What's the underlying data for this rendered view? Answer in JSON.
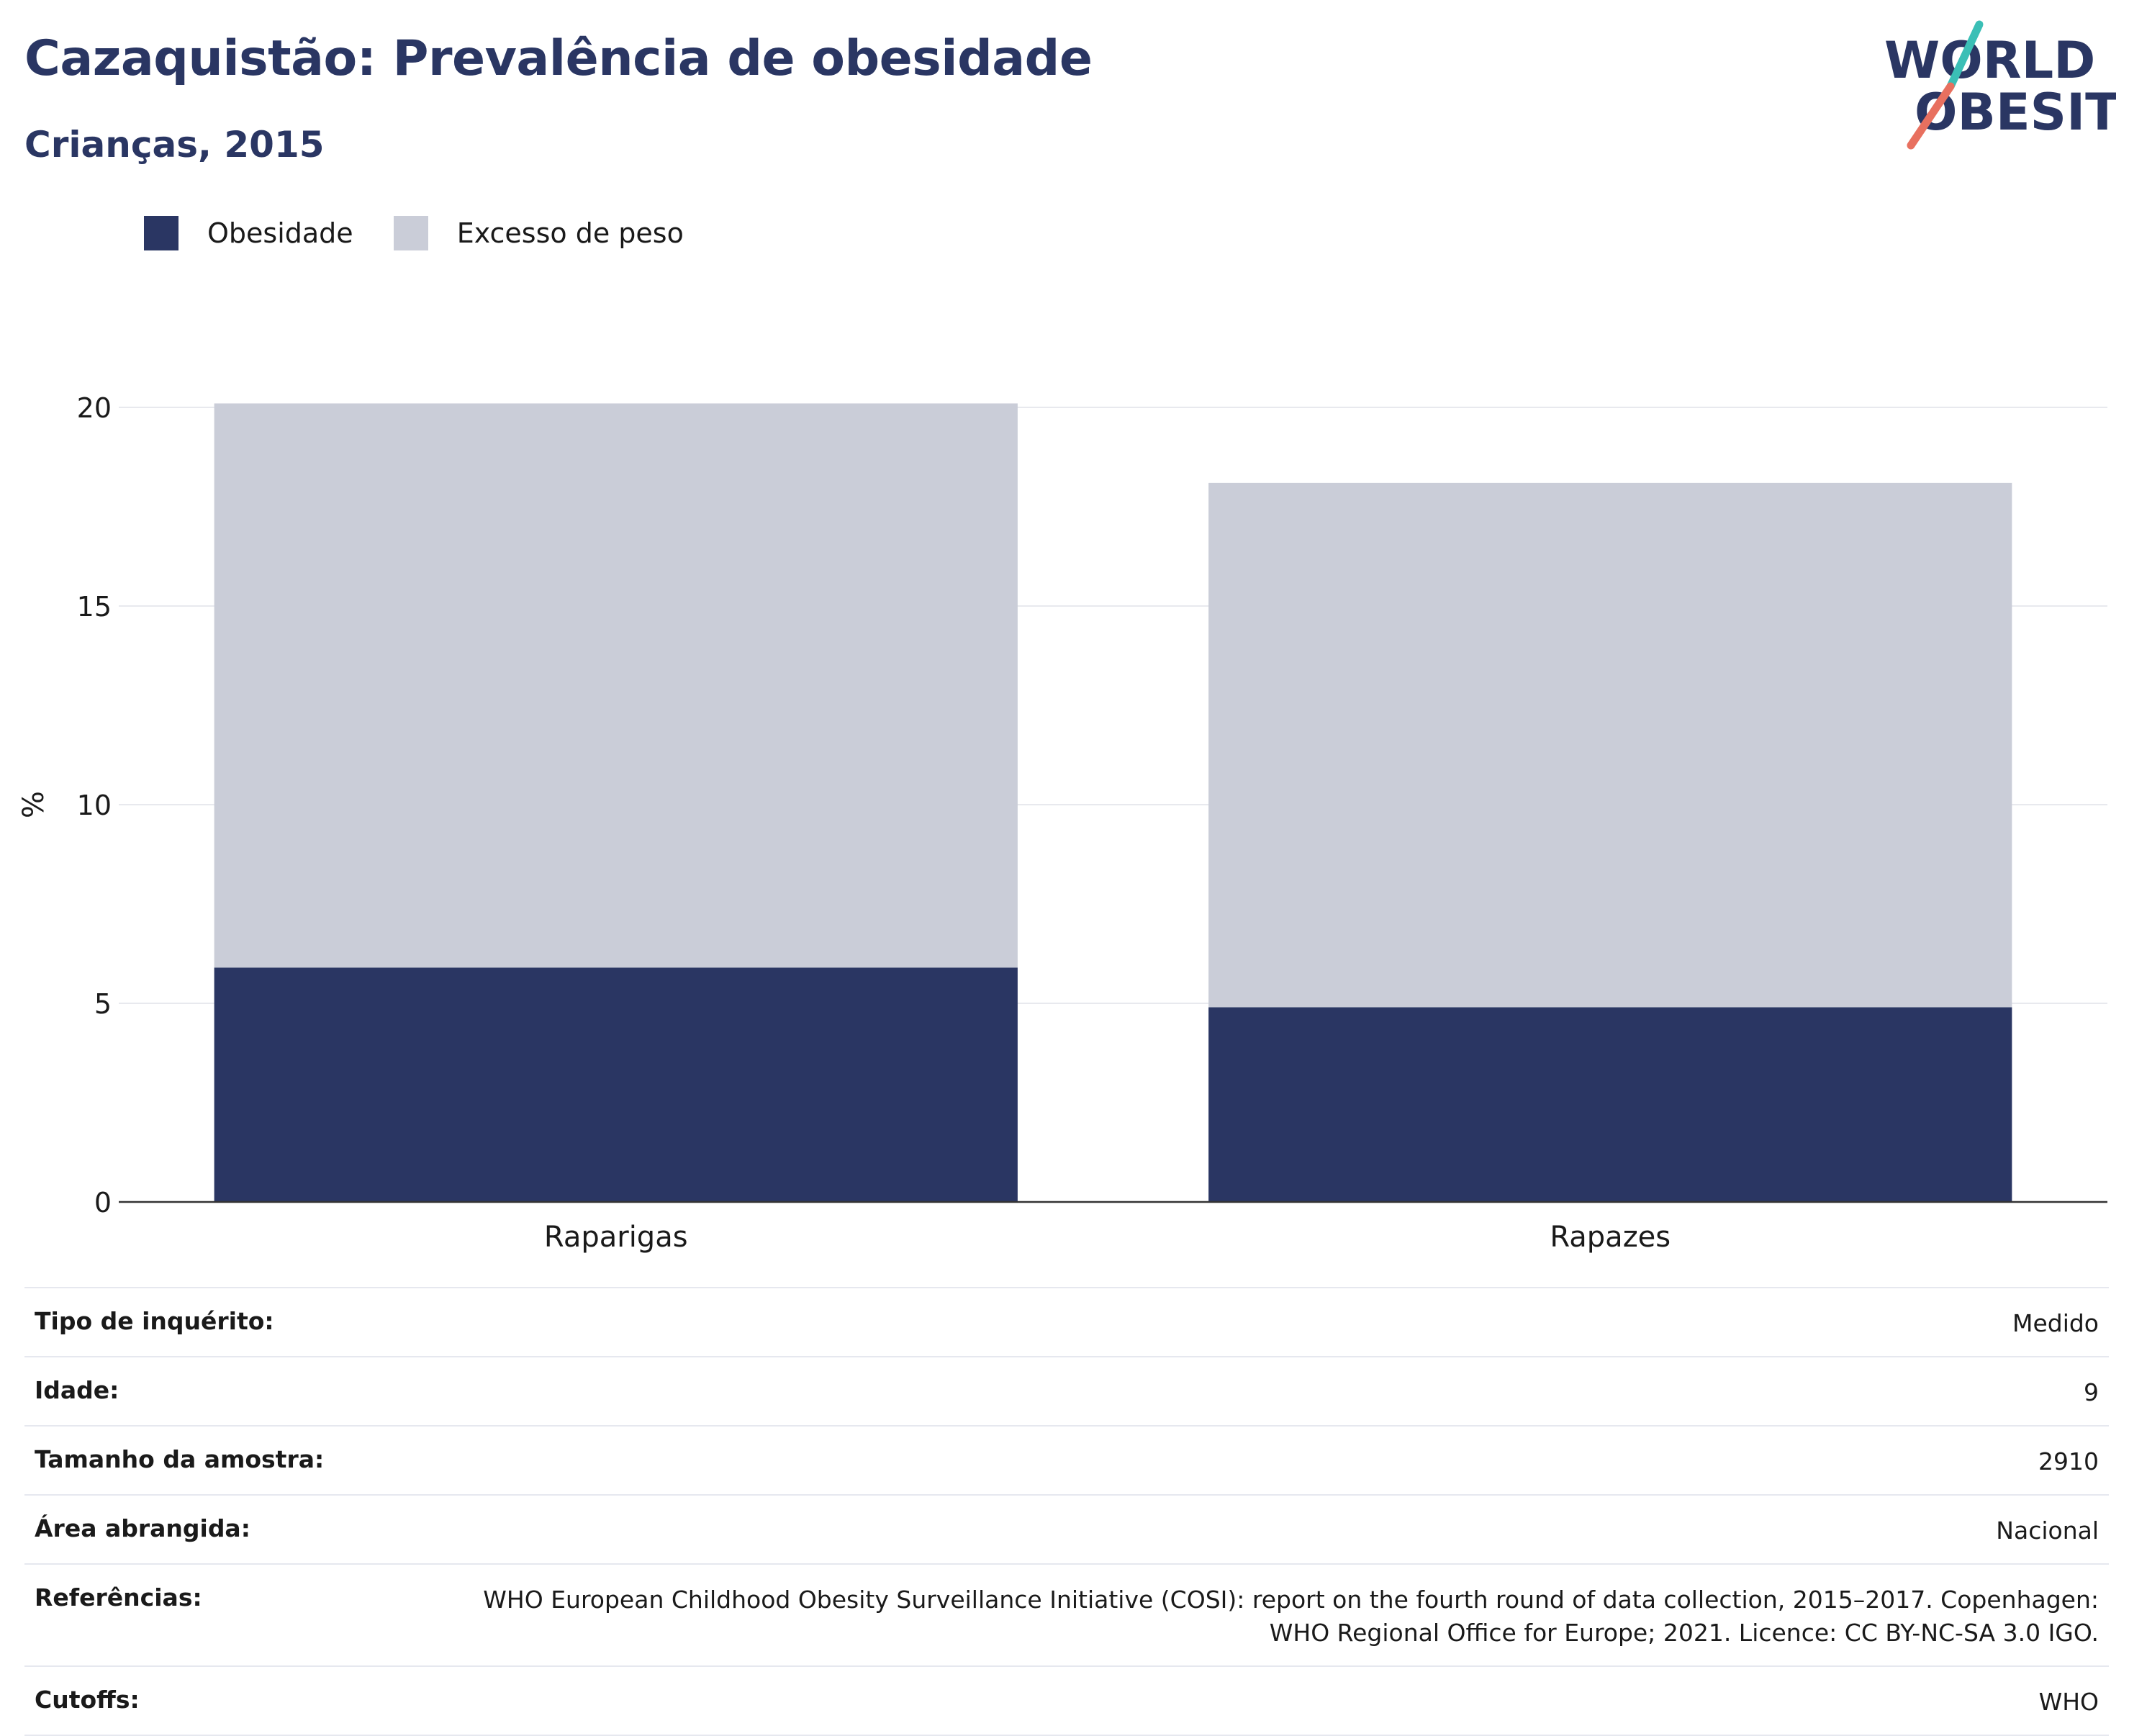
{
  "header": {
    "title": "Cazaquistão: Prevalência de obesidade",
    "subtitle": "Crianças, 2015",
    "logo_line1": "WORLD",
    "logo_line2": "OBESITY"
  },
  "colors": {
    "obesity": "#2a3663",
    "overweight": "#cacdd8",
    "title": "#2a3663",
    "logo_teal": "#3bbfb6",
    "logo_coral": "#e8705f"
  },
  "legend": [
    {
      "label": "Obesidade",
      "color": "#2a3663"
    },
    {
      "label": "Excesso de peso",
      "color": "#cacdd8"
    }
  ],
  "chart_data": {
    "type": "bar",
    "stacked": true,
    "categories": [
      "Raparigas",
      "Rapazes"
    ],
    "series": [
      {
        "name": "Obesidade",
        "values": [
          5.9,
          4.9
        ]
      },
      {
        "name": "Excesso de peso",
        "values": [
          14.2,
          13.2
        ]
      }
    ],
    "ylabel": "%",
    "ylim": [
      0,
      20
    ],
    "yticks": [
      0,
      5,
      10,
      15,
      20
    ],
    "grid": true,
    "legend_position": "top-left"
  },
  "meta": [
    {
      "label": "Tipo de inquérito:",
      "value": "Medido"
    },
    {
      "label": "Idade:",
      "value": "9"
    },
    {
      "label": "Tamanho da amostra:",
      "value": "2910"
    },
    {
      "label": "Área abrangida:",
      "value": "Nacional"
    },
    {
      "label": "Referências:",
      "value": "WHO European Childhood Obesity Surveillance Initiative (COSI): report on the fourth round of data collection, 2015–2017. Copenhagen: WHO Regional Office for Europe; 2021. Licence: CC BY-NC-SA 3.0 IGO."
    },
    {
      "label": "Cutoffs:",
      "value": "WHO"
    }
  ]
}
